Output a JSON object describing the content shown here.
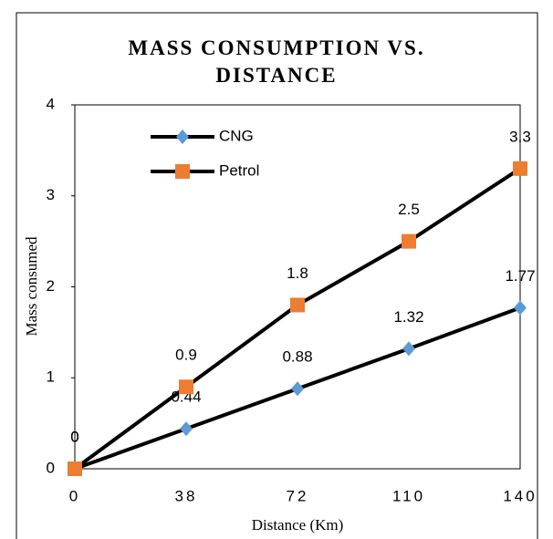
{
  "chart_data": {
    "type": "line",
    "title": "MASS CONSUMPTION VS. DISTANCE",
    "x_label": "Distance (Km)",
    "y_label": "Mass consumed",
    "categories": [
      "0",
      "38",
      "72",
      "110",
      "140"
    ],
    "series": [
      {
        "name": "CNG",
        "color": "#5b9bd5",
        "marker": "diamond",
        "values": [
          0,
          0.44,
          0.88,
          1.32,
          1.77
        ]
      },
      {
        "name": "Petrol",
        "color": "#ed7d31",
        "marker": "square",
        "values": [
          0,
          0.9,
          1.8,
          2.5,
          3.3
        ]
      }
    ],
    "ylim": [
      0,
      4
    ],
    "yticks": [
      0,
      1,
      2,
      3,
      4
    ],
    "grid": false,
    "legend": "upper left"
  }
}
